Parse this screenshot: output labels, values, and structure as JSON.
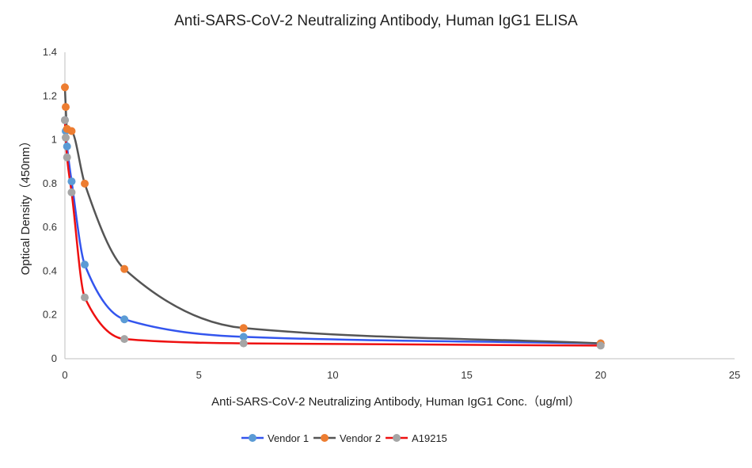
{
  "chart_data": {
    "type": "scatter",
    "title": "Anti-SARS-CoV-2 Neutralizing Antibody, Human IgG1 ELISA",
    "xlabel": "Anti-SARS-CoV-2 Neutralizing Antibody, Human IgG1 Conc.（ug/ml）",
    "ylabel": "Optical Density（450nm）",
    "xlim": [
      0,
      25
    ],
    "ylim": [
      0,
      1.4
    ],
    "x_ticks": [
      0,
      5,
      10,
      15,
      20,
      25
    ],
    "y_ticks": [
      0,
      0.2,
      0.4,
      0.6,
      0.8,
      1.0,
      1.2,
      1.4
    ],
    "x_tick_labels": [
      "0",
      "5",
      "10",
      "15",
      "20",
      "25"
    ],
    "y_tick_labels": [
      "0",
      "0.2",
      "0.4",
      "0.6",
      "0.8",
      "1",
      "1.2",
      "1.4"
    ],
    "grid": false,
    "legend_position": "bottom",
    "series": [
      {
        "name": "Vendor 1",
        "line_color": "#3355ee",
        "marker_color": "#5b9bd5",
        "x": [
          0.0,
          0.03,
          0.08,
          0.25,
          0.74,
          2.22,
          6.67,
          20.0
        ],
        "y": [
          1.09,
          1.04,
          0.97,
          0.81,
          0.43,
          0.18,
          0.1,
          0.07
        ]
      },
      {
        "name": "Vendor 2",
        "line_color": "#555555",
        "marker_color": "#ed7d31",
        "x": [
          0.0,
          0.03,
          0.08,
          0.25,
          0.74,
          2.22,
          6.67,
          20.0
        ],
        "y": [
          1.24,
          1.15,
          1.05,
          1.04,
          0.8,
          0.41,
          0.14,
          0.07
        ]
      },
      {
        "name": "A19215",
        "line_color": "#ee1111",
        "marker_color": "#a5a5a5",
        "x": [
          0.0,
          0.03,
          0.08,
          0.25,
          0.74,
          2.22,
          6.67,
          20.0
        ],
        "y": [
          1.09,
          1.01,
          0.92,
          0.76,
          0.28,
          0.09,
          0.07,
          0.06
        ]
      }
    ]
  }
}
